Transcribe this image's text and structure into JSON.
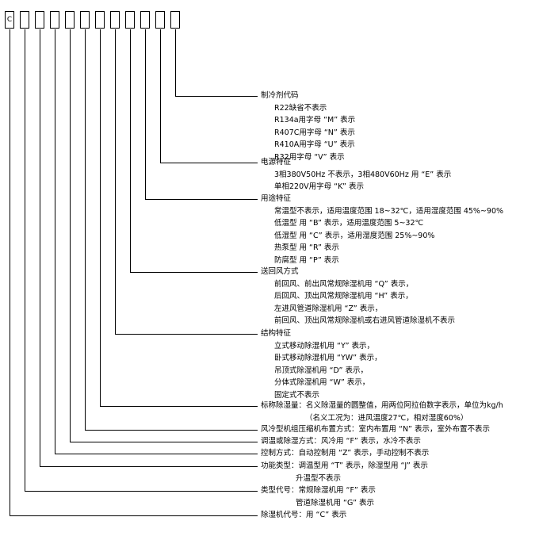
{
  "code_boxes": [
    "C",
    "",
    "",
    "",
    "",
    "",
    "",
    "",
    "",
    "",
    "",
    ""
  ],
  "sections": [
    {
      "title": "制冷剂代码",
      "lines": [
        "R22缺省不表示",
        "R134a用字母 “M” 表示",
        "R407C用字母 “N” 表示",
        "R410A用字母 “U” 表示",
        "R32用字母 “V” 表示"
      ]
    },
    {
      "title": "电源特征",
      "lines": [
        "3相380V50Hz 不表示，3相480V60Hz 用 “E” 表示",
        "单相220V用字母 “K” 表示"
      ]
    },
    {
      "title": "用途特征",
      "lines": [
        "常温型不表示，适用温度范围 18~32℃，适用湿度范围 45%~90%",
        "低温型 用 “B” 表示，适用温度范围 5~32℃",
        "低湿型 用 “C” 表示，适用湿度范围 25%~90%",
        "热泵型 用 “R” 表示",
        "防腐型 用 “P” 表示"
      ]
    },
    {
      "title": "送回风方式",
      "lines": [
        "前回风、前出风常规除湿机用 “Q” 表示，",
        "后回风、顶出风常规除湿机用 “H” 表示，",
        "左进风管道除湿机用 “Z” 表示，",
        "前回风、顶出风常规除湿机或右进风管道除湿机不表示"
      ]
    },
    {
      "title": "结构特征",
      "lines": [
        "立式移动除湿机用 “Y” 表示，",
        "卧式移动除湿机用 “YW” 表示，",
        "吊顶式除湿机用 “D” 表示，",
        "分体式除湿机用 “W” 表示，",
        "固定式不表示"
      ]
    },
    {
      "title": "标称除湿量：名义除湿量的圆整值，用两位阿拉伯数字表示，单位为kg/h",
      "lines": [
        "（名义工况为：进风温度27℃，相对湿度60%）"
      ]
    },
    {
      "title": "风冷型机组压缩机布置方式：室内布置用 “N” 表示，室外布置不表示",
      "lines": []
    },
    {
      "title": "调温或除湿方式：风冷用 “F” 表示，水冷不表示",
      "lines": []
    },
    {
      "title": "控制方式：自动控制用 “Z” 表示，手动控制不表示",
      "lines": []
    },
    {
      "title": "功能类型：调温型用 “T” 表示，除湿型用 “J” 表示",
      "lines": [
        "升温型不表示"
      ]
    },
    {
      "title": "类型代号：常规除湿机用 “F” 表示",
      "lines": [
        "管道除湿机用 “G” 表示"
      ]
    },
    {
      "title": "除湿机代号：用 “C” 表示",
      "lines": []
    }
  ]
}
